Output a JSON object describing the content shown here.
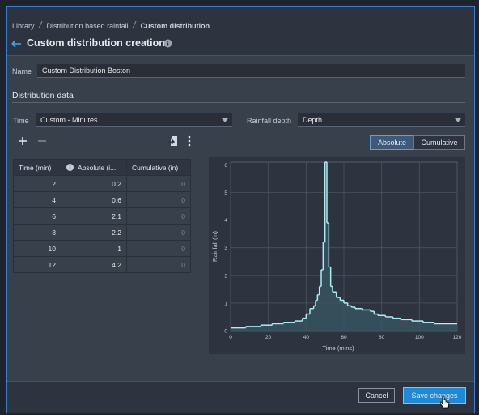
{
  "breadcrumb": [
    "Library",
    "Distribution based rainfall",
    "Custom distribution"
  ],
  "title": "Custom distribution creation",
  "name_field": {
    "label": "Name",
    "value": "Custom Distribution Boston"
  },
  "section_title": "Distribution data",
  "time_field": {
    "label": "Time",
    "value": "Custom - Minutes"
  },
  "depth_field": {
    "label": "Rainfall depth",
    "value": "Depth"
  },
  "toggle": {
    "options": [
      "Absolute",
      "Cumulative"
    ],
    "selected": 0
  },
  "table": {
    "columns": [
      "Time (min)",
      "Absolute (i...",
      "Cumulative (in)"
    ],
    "rows": [
      [
        2,
        0.2,
        0
      ],
      [
        4,
        0.6,
        0
      ],
      [
        6,
        2.1,
        0
      ],
      [
        8,
        2.2,
        0
      ],
      [
        10,
        1,
        0
      ],
      [
        12,
        4.2,
        0
      ]
    ]
  },
  "chart_data": {
    "type": "step",
    "x_label": "Time (mins)",
    "y_label": "Rainfall (in)",
    "x": [
      0,
      8,
      16,
      22,
      28,
      34,
      38,
      40,
      42,
      44,
      45,
      46,
      47,
      48,
      49,
      50,
      51,
      52,
      53,
      54,
      56,
      58,
      60,
      62,
      64,
      66,
      70,
      74,
      76,
      78,
      82,
      86,
      90,
      96,
      102,
      108
    ],
    "values": [
      0.1,
      0.15,
      0.2,
      0.25,
      0.3,
      0.35,
      0.45,
      0.6,
      0.8,
      0.9,
      1.1,
      1.3,
      1.6,
      2.2,
      3.2,
      6.1,
      3.9,
      2.3,
      1.6,
      1.4,
      1.2,
      1.1,
      1.0,
      0.9,
      0.85,
      0.8,
      0.75,
      0.7,
      0.6,
      0.55,
      0.5,
      0.45,
      0.4,
      0.35,
      0.3,
      0.25
    ],
    "color": "#a9eef0",
    "fill": true,
    "xlim": [
      0,
      120
    ],
    "xticks": [
      0,
      20,
      40,
      60,
      80,
      100,
      120
    ],
    "ylim": [
      0,
      6.1
    ],
    "yticks": [
      0,
      1,
      2,
      3,
      4,
      5,
      6
    ],
    "grid": true
  },
  "buttons": {
    "cancel": "Cancel",
    "save": "Save changes"
  }
}
